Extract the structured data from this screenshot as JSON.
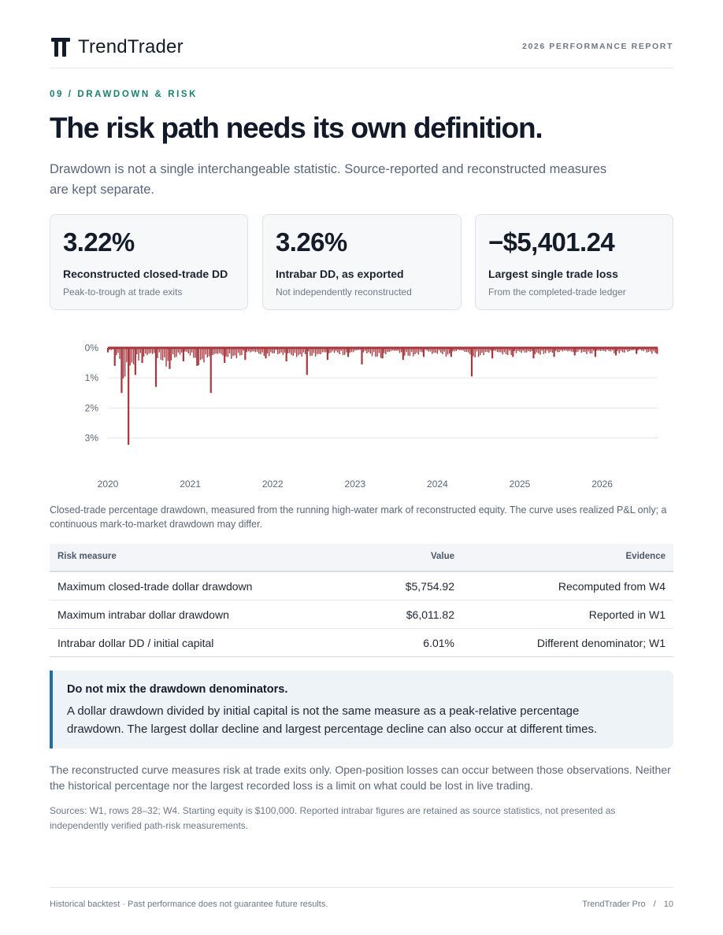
{
  "header": {
    "brand_name": "TrendTrader",
    "report_label": "2026 PERFORMANCE REPORT"
  },
  "section": {
    "eyebrow": "09 / DRAWDOWN & RISK",
    "title": "The risk path needs its own definition.",
    "lede": "Drawdown is not a single interchangeable statistic. Source-reported and reconstructed measures are kept separate."
  },
  "kpis": [
    {
      "value": "3.22%",
      "label": "Reconstructed closed-trade DD",
      "sub": "Peak-to-trough at trade exits"
    },
    {
      "value": "3.26%",
      "label": "Intrabar DD, as exported",
      "sub": "Not independently reconstructed"
    },
    {
      "value": "−$5,401.24",
      "label": "Largest single trade loss",
      "sub": "From the completed-trade ledger"
    }
  ],
  "chart_data": {
    "type": "area",
    "title": "",
    "xlabel": "",
    "ylabel": "",
    "x_ticks": [
      "2020",
      "2021",
      "2022",
      "2023",
      "2024",
      "2025",
      "2026"
    ],
    "y_ticks": [
      "0%",
      "1%",
      "2%",
      "3%"
    ],
    "ylim": [
      0,
      3.3
    ],
    "y_inverted": true,
    "grid": true,
    "color": "#a8373d",
    "series": [
      {
        "points": [
          [
            "2020-01",
            0.15
          ],
          [
            "2020-02",
            0.6
          ],
          [
            "2020-03",
            1.5
          ],
          [
            "2020-04",
            3.22
          ],
          [
            "2020-05",
            0.9
          ],
          [
            "2020-06",
            0.5
          ],
          [
            "2020-08",
            1.3
          ],
          [
            "2020-10",
            0.7
          ],
          [
            "2020-12",
            0.45
          ],
          [
            "2021-02",
            0.6
          ],
          [
            "2021-04",
            1.5
          ],
          [
            "2021-06",
            0.5
          ],
          [
            "2021-09",
            0.4
          ],
          [
            "2021-12",
            0.35
          ],
          [
            "2022-03",
            0.45
          ],
          [
            "2022-06",
            0.9
          ],
          [
            "2022-09",
            0.4
          ],
          [
            "2022-12",
            0.3
          ],
          [
            "2023-02",
            0.55
          ],
          [
            "2023-05",
            0.35
          ],
          [
            "2023-08",
            0.4
          ],
          [
            "2023-11",
            0.3
          ],
          [
            "2024-03",
            0.3
          ],
          [
            "2024-06",
            0.95
          ],
          [
            "2024-09",
            0.35
          ],
          [
            "2024-12",
            0.3
          ],
          [
            "2025-03",
            0.35
          ],
          [
            "2025-06",
            0.3
          ],
          [
            "2025-09",
            0.25
          ],
          [
            "2025-12",
            0.3
          ],
          [
            "2026-03",
            0.25
          ],
          [
            "2026-06",
            0.2
          ],
          [
            "2026-09",
            0.2
          ]
        ]
      }
    ]
  },
  "chart_caption": "Closed-trade percentage drawdown, measured from the running high-water mark of reconstructed equity. The curve uses realized P&L only; a continuous mark-to-market drawdown may differ.",
  "table": {
    "headers": [
      "Risk measure",
      "Value",
      "Evidence"
    ],
    "rows": [
      [
        "Maximum closed‑trade dollar drawdown",
        "$5,754.92",
        "Recomputed from W4"
      ],
      [
        "Maximum intrabar dollar drawdown",
        "$6,011.82",
        "Reported in W1"
      ],
      [
        "Intrabar dollar DD / initial capital",
        "6.01%",
        "Different denominator; W1"
      ]
    ]
  },
  "callout": {
    "heading": "Do not mix the drawdown denominators.",
    "body": "A dollar drawdown divided by initial capital is not the same measure as a peak-relative percentage drawdown. The largest dollar decline and largest percentage decline can also occur at different times."
  },
  "body_text": "The reconstructed curve measures risk at trade exits only. Open-position losses can occur between those observations. Neither the historical percentage nor the largest recorded loss is a limit on what could be lost in live trading.",
  "sources": "Sources: W1, rows 28–32; W4. Starting equity is $100,000. Reported intrabar figures are retained as source statistics, not presented as independently verified path-risk measurements.",
  "footer": {
    "disclaimer": "Historical backtest · Past performance does not guarantee future results.",
    "product": "TrendTrader Pro",
    "separator": "/",
    "page_number": "10"
  }
}
